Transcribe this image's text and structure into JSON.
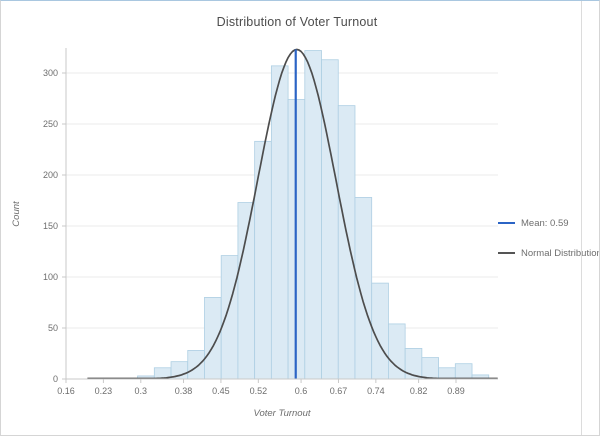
{
  "chart": {
    "title": "Distribution of Voter Turnout",
    "x_axis": {
      "label": "Voter Turnout",
      "tick_labels": [
        "0.16",
        "0.23",
        "0.3",
        "0.38",
        "0.45",
        "0.52",
        "0.6",
        "0.67",
        "0.74",
        "0.82",
        "0.89"
      ],
      "tick_values": [
        0.16,
        0.23,
        0.3,
        0.38,
        0.45,
        0.52,
        0.6,
        0.67,
        0.74,
        0.82,
        0.89
      ],
      "range": [
        0.16,
        0.89
      ]
    },
    "y_axis": {
      "label": "Count",
      "tick_values": [
        0,
        50,
        100,
        150,
        200,
        250,
        300
      ],
      "range": [
        0,
        325
      ]
    },
    "legend": [
      {
        "label": "Mean: 0.59",
        "color": "#2b64c5"
      },
      {
        "label": "Normal Distribution",
        "color": "#555555"
      }
    ],
    "colors": {
      "bar_fill": "#dbeaf4",
      "bar_stroke": "#aecfe3",
      "curve": "#4d4d4d",
      "mean_line": "#2b64c5",
      "grid": "#ebebeb",
      "axis": "#c9c9c9",
      "tick_text": "#6e6e6e",
      "title_text": "#4c4c4c"
    }
  },
  "chart_data": {
    "type": "bar",
    "subtype": "histogram",
    "title": "Distribution of Voter Turnout",
    "xlabel": "Voter Turnout",
    "ylabel": "Count",
    "xlim": [
      0.16,
      0.89
    ],
    "ylim": [
      0,
      325
    ],
    "grid": "horizontal",
    "legend_position": "right",
    "bin_start": 0.294,
    "bin_width": 0.0313,
    "counts": [
      3,
      11,
      17,
      28,
      80,
      121,
      173,
      233,
      307,
      274,
      322,
      313,
      268,
      178,
      94,
      54,
      30,
      21,
      11,
      15,
      4
    ],
    "mean_line": {
      "value": 0.59,
      "label": "Mean: 0.59"
    },
    "normal_curve": {
      "label": "Normal Distribution",
      "mean": 0.592,
      "sigma": 0.073,
      "peak": 323
    }
  }
}
